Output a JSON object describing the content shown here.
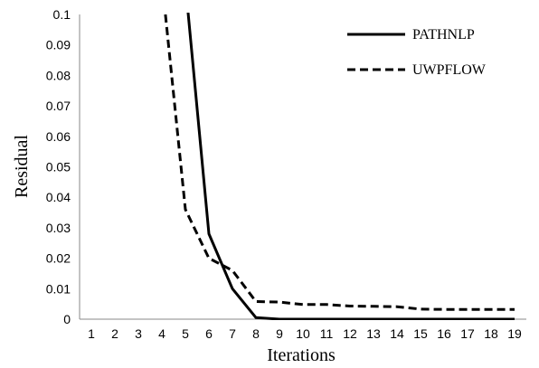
{
  "chart_data": {
    "type": "line",
    "xlabel": "Iterations",
    "ylabel": "Residual",
    "x": [
      1,
      2,
      3,
      4,
      5,
      6,
      7,
      8,
      9,
      10,
      11,
      12,
      13,
      14,
      15,
      16,
      17,
      18,
      19
    ],
    "ylim": [
      0,
      0.1
    ],
    "yticks": [
      "0",
      "0.01",
      "0.02",
      "0.03",
      "0.04",
      "0.05",
      "0.06",
      "0.07",
      "0.08",
      "0.09",
      "0.1"
    ],
    "grid": false,
    "legend_position": "top-right",
    "series": [
      {
        "name": "PATHNLP",
        "style": "solid",
        "color": "#000000",
        "points": [
          [
            5,
            0.11
          ],
          [
            6,
            0.028
          ],
          [
            7,
            0.01
          ],
          [
            8,
            0.0005
          ],
          [
            9,
            0
          ],
          [
            10,
            0
          ],
          [
            11,
            0
          ],
          [
            12,
            0
          ],
          [
            13,
            0
          ],
          [
            14,
            0
          ],
          [
            15,
            0
          ],
          [
            16,
            0
          ],
          [
            17,
            0
          ],
          [
            18,
            0
          ],
          [
            19,
            0
          ]
        ]
      },
      {
        "name": "UWPFLOW",
        "style": "dashed",
        "color": "#000000",
        "points": [
          [
            4.15,
            0.1
          ],
          [
            5,
            0.036
          ],
          [
            6,
            0.02
          ],
          [
            7,
            0.016
          ],
          [
            8,
            0.0058
          ],
          [
            9,
            0.0056
          ],
          [
            10,
            0.0048
          ],
          [
            11,
            0.0048
          ],
          [
            12,
            0.0043
          ],
          [
            13,
            0.0042
          ],
          [
            14,
            0.0041
          ],
          [
            15,
            0.0033
          ],
          [
            16,
            0.0032
          ],
          [
            17,
            0.0032
          ],
          [
            18,
            0.0032
          ],
          [
            19,
            0.0032
          ]
        ]
      }
    ]
  }
}
